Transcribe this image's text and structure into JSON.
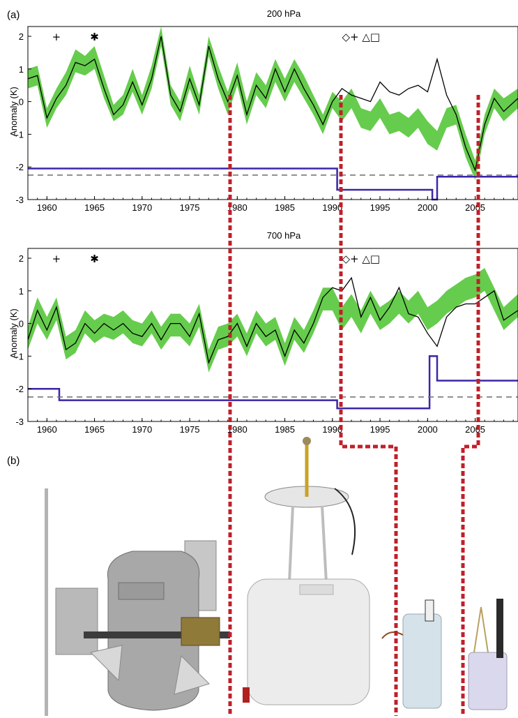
{
  "figure": {
    "panel_a_label": "(a)",
    "panel_b_label": "(b)"
  },
  "colors": {
    "obs": "#000000",
    "ensemble_band": "#66cc4d",
    "breakpoint_series": "#3b25a8",
    "dashed_reference": "#777777",
    "marker_line": "#c0202a"
  },
  "chart_data": [
    {
      "type": "line",
      "title": "200 hPa",
      "ylabel": "Anomaly (K)",
      "xlabel": "",
      "xlim": [
        1958,
        2009.5
      ],
      "ylim": [
        -3,
        2.3
      ],
      "xticks": [
        1960,
        1965,
        1970,
        1975,
        1980,
        1985,
        1990,
        1995,
        2000,
        2005
      ],
      "yticks": [
        2,
        1,
        0,
        -1,
        -2,
        -3
      ],
      "grid": false,
      "symbols": [
        {
          "x": 1961,
          "label": "+"
        },
        {
          "x": 1965,
          "label": "✱"
        },
        {
          "x": 1993,
          "label": "◇+ △□"
        }
      ],
      "series": [
        {
          "style": "band",
          "x": [
            1958,
            1959,
            1960,
            1961,
            1962,
            1963,
            1964,
            1965,
            1966,
            1967,
            1968,
            1969,
            1970,
            1971,
            1972,
            1973,
            1974,
            1975,
            1976,
            1977,
            1978,
            1979,
            1980,
            1981,
            1982,
            1983,
            1984,
            1985,
            1986,
            1987,
            1988,
            1989,
            1990,
            1991,
            1992,
            1993,
            1994,
            1995,
            1996,
            1997,
            1998,
            1999,
            2000,
            2001,
            2002,
            2003,
            2004,
            2005,
            2006,
            2007,
            2008,
            2009.5
          ],
          "lower": [
            0.4,
            0.5,
            -0.8,
            -0.2,
            0.2,
            0.9,
            0.8,
            1.0,
            0.1,
            -0.6,
            -0.4,
            0.3,
            -0.4,
            0.4,
            1.7,
            -0.1,
            -0.6,
            0.4,
            -0.4,
            1.4,
            0.4,
            -0.4,
            0.5,
            -0.7,
            0.2,
            -0.2,
            0.6,
            0.0,
            0.6,
            0.1,
            -0.4,
            -1.0,
            -0.2,
            -0.6,
            -0.2,
            -0.8,
            -0.9,
            -0.5,
            -1.0,
            -0.9,
            -1.1,
            -0.8,
            -1.3,
            -1.5,
            -0.8,
            -0.7,
            -1.7,
            -2.4,
            -1.0,
            -0.2,
            -0.6,
            -0.2
          ],
          "upper": [
            1.0,
            1.1,
            -0.2,
            0.4,
            0.9,
            1.6,
            1.4,
            1.7,
            0.8,
            -0.1,
            0.2,
            1.0,
            0.2,
            1.1,
            2.3,
            0.5,
            0.0,
            1.1,
            0.2,
            2.0,
            1.1,
            0.3,
            1.2,
            0.0,
            0.9,
            0.5,
            1.3,
            0.7,
            1.3,
            0.8,
            0.2,
            -0.4,
            0.3,
            0.0,
            0.4,
            -0.2,
            -0.3,
            0.1,
            -0.4,
            -0.3,
            -0.5,
            -0.2,
            -0.6,
            -0.9,
            -0.2,
            -0.1,
            -1.0,
            -1.8,
            -0.4,
            0.4,
            0.1,
            0.4
          ]
        },
        {
          "style": "line",
          "x": [
            1958,
            1959,
            1960,
            1961,
            1962,
            1963,
            1964,
            1965,
            1966,
            1967,
            1968,
            1969,
            1970,
            1971,
            1972,
            1973,
            1974,
            1975,
            1976,
            1977,
            1978,
            1979,
            1980,
            1981,
            1982,
            1983,
            1984,
            1985,
            1986,
            1987,
            1988,
            1989,
            1990,
            1991,
            1992,
            1993,
            1994,
            1995,
            1996,
            1997,
            1998,
            1999,
            2000,
            2001,
            2002,
            2003,
            2004,
            2005,
            2006,
            2007,
            2008,
            2009.5
          ],
          "y": [
            0.7,
            0.8,
            -0.5,
            0.1,
            0.5,
            1.2,
            1.1,
            1.3,
            0.4,
            -0.4,
            -0.1,
            0.6,
            -0.1,
            0.7,
            2.0,
            0.2,
            -0.3,
            0.7,
            -0.1,
            1.7,
            0.7,
            0.0,
            0.8,
            -0.4,
            0.5,
            0.1,
            1.0,
            0.3,
            1.0,
            0.4,
            -0.1,
            -0.7,
            0.0,
            0.4,
            0.2,
            0.1,
            0.0,
            0.6,
            0.3,
            0.2,
            0.4,
            0.5,
            0.3,
            1.3,
            0.2,
            -0.4,
            -1.4,
            -2.1,
            -0.7,
            0.1,
            -0.3,
            0.1
          ]
        },
        {
          "style": "step",
          "x": [
            1958,
            1990.5,
            1990.5,
            2000.5,
            2000.5,
            2001,
            2001,
            2009.5
          ],
          "y": [
            -2.05,
            -2.05,
            -2.7,
            -2.7,
            -3.0,
            -3.0,
            -2.3,
            -2.3
          ]
        },
        {
          "style": "dashed",
          "x": [
            1958,
            2009.5
          ],
          "y": [
            -2.25,
            -2.25
          ]
        }
      ]
    },
    {
      "type": "line",
      "title": "700 hPa",
      "ylabel": "Anomaly (K)",
      "xlabel": "",
      "xlim": [
        1958,
        2009.5
      ],
      "ylim": [
        -3,
        2.3
      ],
      "xticks": [
        1960,
        1965,
        1970,
        1975,
        1980,
        1985,
        1990,
        1995,
        2000,
        2005
      ],
      "yticks": [
        2,
        1,
        0,
        -1,
        -2,
        -3
      ],
      "grid": false,
      "symbols": [
        {
          "x": 1961,
          "label": "+"
        },
        {
          "x": 1965,
          "label": "✱"
        },
        {
          "x": 1993,
          "label": "◇+ △□"
        }
      ],
      "series": [
        {
          "style": "band",
          "x": [
            1958,
            1959,
            1960,
            1961,
            1962,
            1963,
            1964,
            1965,
            1966,
            1967,
            1968,
            1969,
            1970,
            1971,
            1972,
            1973,
            1974,
            1975,
            1976,
            1977,
            1978,
            1979,
            1980,
            1981,
            1982,
            1983,
            1984,
            1985,
            1986,
            1987,
            1988,
            1989,
            1990,
            1991,
            1992,
            1993,
            1994,
            1995,
            1996,
            1997,
            1998,
            1999,
            2000,
            2001,
            2002,
            2003,
            2004,
            2005,
            2006,
            2007,
            2008,
            2009.5
          ],
          "lower": [
            -0.8,
            0.0,
            -0.5,
            0.1,
            -1.1,
            -0.9,
            -0.3,
            -0.6,
            -0.4,
            -0.5,
            -0.3,
            -0.6,
            -0.7,
            -0.3,
            -0.8,
            -0.4,
            -0.4,
            -0.7,
            -0.1,
            -1.5,
            -0.8,
            -0.7,
            -0.4,
            -1.0,
            -0.3,
            -0.7,
            -0.5,
            -1.3,
            -0.5,
            -0.9,
            -0.3,
            0.4,
            0.4,
            -0.2,
            0.2,
            -0.3,
            0.3,
            -0.2,
            0.0,
            0.3,
            0.0,
            0.3,
            -0.2,
            0.0,
            0.3,
            0.5,
            0.7,
            0.8,
            1.0,
            0.4,
            -0.2,
            0.2
          ],
          "upper": [
            -0.1,
            0.8,
            0.2,
            0.8,
            -0.4,
            -0.2,
            0.4,
            0.1,
            0.3,
            0.2,
            0.4,
            0.1,
            0.0,
            0.4,
            -0.1,
            0.3,
            0.3,
            0.0,
            0.6,
            -0.8,
            -0.1,
            0.0,
            0.3,
            -0.3,
            0.4,
            0.0,
            0.2,
            -0.6,
            0.2,
            -0.2,
            0.4,
            1.1,
            1.1,
            0.5,
            0.9,
            0.4,
            1.0,
            0.5,
            0.7,
            1.0,
            0.7,
            1.0,
            0.5,
            0.7,
            1.0,
            1.2,
            1.4,
            1.5,
            1.7,
            1.1,
            0.5,
            0.9
          ]
        },
        {
          "style": "line",
          "x": [
            1958,
            1959,
            1960,
            1961,
            1962,
            1963,
            1964,
            1965,
            1966,
            1967,
            1968,
            1969,
            1970,
            1971,
            1972,
            1973,
            1974,
            1975,
            1976,
            1977,
            1978,
            1979,
            1980,
            1981,
            1982,
            1983,
            1984,
            1985,
            1986,
            1987,
            1988,
            1989,
            1990,
            1991,
            1992,
            1993,
            1994,
            1995,
            1996,
            1997,
            1998,
            1999,
            2000,
            2001,
            2002,
            2003,
            2004,
            2005,
            2006,
            2007,
            2008,
            2009.5
          ],
          "y": [
            -0.5,
            0.4,
            -0.2,
            0.5,
            -0.8,
            -0.6,
            0.0,
            -0.3,
            0.0,
            -0.2,
            0.0,
            -0.3,
            -0.4,
            0.0,
            -0.5,
            0.0,
            0.0,
            -0.4,
            0.3,
            -1.2,
            -0.5,
            -0.4,
            0.0,
            -0.7,
            0.0,
            -0.4,
            -0.2,
            -1.0,
            -0.2,
            -0.6,
            0.0,
            0.8,
            1.1,
            1.0,
            1.4,
            0.2,
            0.8,
            0.1,
            0.5,
            1.1,
            0.3,
            0.2,
            -0.3,
            -0.7,
            0.2,
            0.5,
            0.6,
            0.6,
            0.8,
            1.0,
            0.1,
            0.4
          ]
        },
        {
          "style": "step",
          "x": [
            1958,
            1961.3,
            1961.3,
            1990.5,
            1990.5,
            2000.2,
            2000.2,
            2001,
            2001,
            2009.5
          ],
          "y": [
            -2.0,
            -2.0,
            -2.35,
            -2.35,
            -2.6,
            -2.6,
            -1.0,
            -1.0,
            -1.75,
            -1.75
          ]
        },
        {
          "style": "dashed",
          "x": [
            1958,
            2009.5
          ],
          "y": [
            -2.25,
            -2.25
          ]
        }
      ]
    }
  ]
}
